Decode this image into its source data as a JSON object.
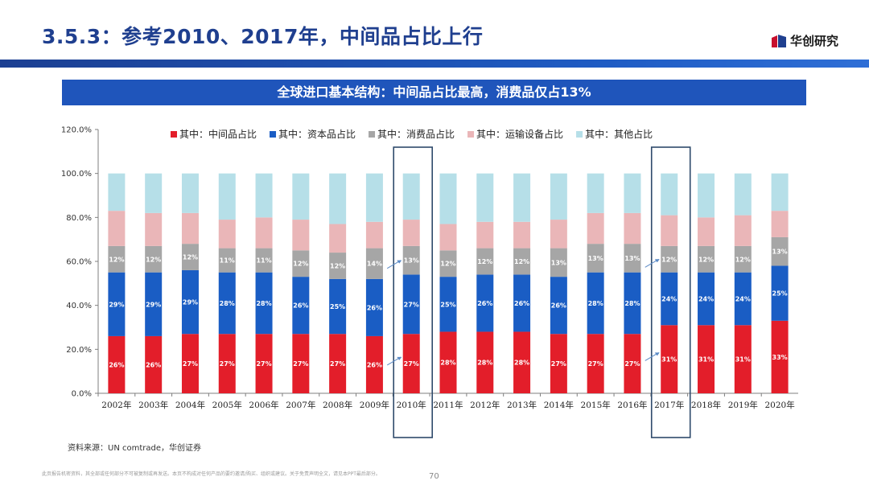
{
  "header": {
    "title": "3.5.3：参考2010、2017年，中间品占比上行",
    "brand_name": "华创研究"
  },
  "banner": {
    "text": "全球进口基本结构：中间品占比最高，消费品仅占13%"
  },
  "chart_data": {
    "type": "bar",
    "stacked": true,
    "categories": [
      "2002年",
      "2003年",
      "2004年",
      "2005年",
      "2006年",
      "2007年",
      "2008年",
      "2009年",
      "2010年",
      "2011年",
      "2012年",
      "2013年",
      "2014年",
      "2015年",
      "2016年",
      "2017年",
      "2018年",
      "2019年",
      "2020年"
    ],
    "series": [
      {
        "name": "其中：中间品占比",
        "color": "#e31e2a",
        "values": [
          26,
          26,
          27,
          27,
          27,
          27,
          27,
          26,
          27,
          28,
          28,
          28,
          27,
          27,
          27,
          31,
          31,
          31,
          33
        ],
        "labels": [
          "26%",
          "26%",
          "27%",
          "27%",
          "27%",
          "27%",
          "27%",
          "26%",
          "27%",
          "28%",
          "28%",
          "28%",
          "27%",
          "27%",
          "27%",
          "31%",
          "31%",
          "31%",
          "33%"
        ]
      },
      {
        "name": "其中：资本品占比",
        "color": "#1a5dc4",
        "values": [
          29,
          29,
          29,
          28,
          28,
          26,
          25,
          26,
          27,
          25,
          26,
          26,
          26,
          28,
          28,
          24,
          24,
          24,
          25
        ],
        "labels": [
          "29%",
          "29%",
          "29%",
          "28%",
          "28%",
          "26%",
          "25%",
          "26%",
          "27%",
          "25%",
          "26%",
          "26%",
          "26%",
          "28%",
          "28%",
          "24%",
          "24%",
          "24%",
          "25%"
        ]
      },
      {
        "name": "其中：消费品占比",
        "color": "#a6a6a6",
        "values": [
          12,
          12,
          12,
          11,
          11,
          12,
          12,
          14,
          13,
          12,
          12,
          12,
          13,
          13,
          13,
          12,
          12,
          12,
          13
        ],
        "labels": [
          "12%",
          "12%",
          "12%",
          "11%",
          "11%",
          "12%",
          "12%",
          "14%",
          "13%",
          "12%",
          "12%",
          "12%",
          "13%",
          "13%",
          "13%",
          "12%",
          "12%",
          "12%",
          "13%"
        ]
      },
      {
        "name": "其中：运输设备占比",
        "color": "#eab6b8",
        "values": [
          16,
          15,
          14,
          13,
          14,
          14,
          13,
          12,
          12,
          12,
          12,
          12,
          13,
          14,
          14,
          14,
          13,
          14,
          12
        ],
        "labels": []
      },
      {
        "name": "其中：其他占比",
        "color": "#b6dfe8",
        "values": [
          17,
          18,
          18,
          21,
          20,
          21,
          23,
          22,
          21,
          23,
          22,
          22,
          21,
          18,
          18,
          19,
          20,
          19,
          17
        ],
        "labels": []
      }
    ],
    "ylim": [
      0,
      120
    ],
    "yticks": [
      "0.0%",
      "20.0%",
      "40.0%",
      "60.0%",
      "80.0%",
      "100.0%",
      "120.0%"
    ],
    "highlighted_categories": [
      "2010年",
      "2017年"
    ],
    "legend_position": "top",
    "grid": false
  },
  "footer": {
    "source": "资料来源：UN comtrade，华创证券",
    "disclaimer": "此页报告机密资料，其全部或任何部分不可被复制或再发送。本页不构成对任何产品的要约邀请/购买、组织或建议。关于免责声明全文，请见本PPT最后部分。",
    "page_number": "70"
  }
}
